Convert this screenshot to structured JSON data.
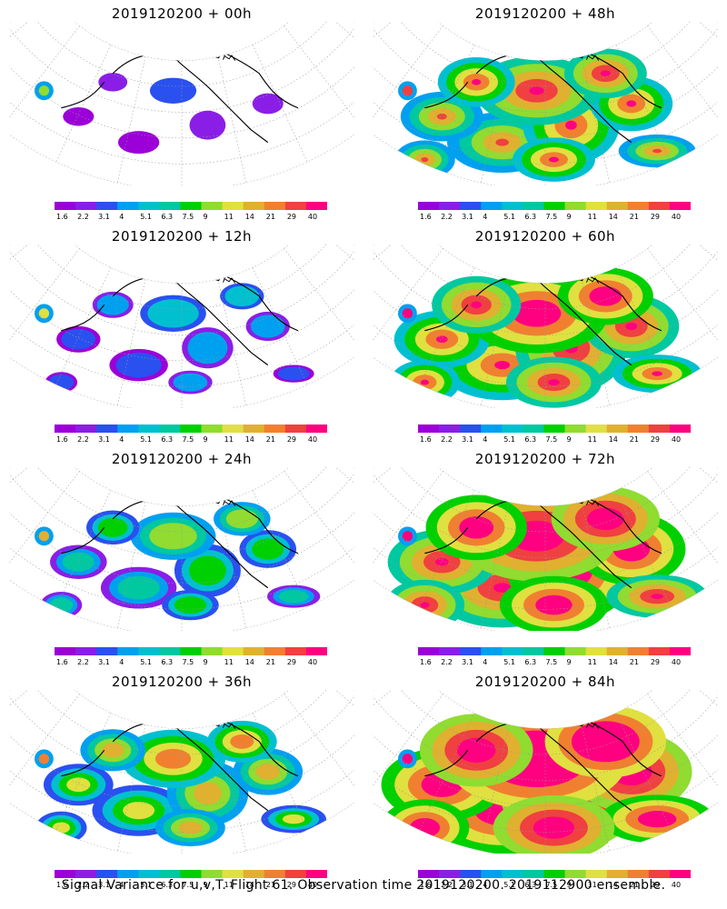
{
  "caption": "Signal Variance for u,v,T. Flight 61. Observation time 2019120200. 2019112900 ensemble.",
  "panels": [
    {
      "title": "2019120200 + 00h",
      "level": 0
    },
    {
      "title": "2019120200 + 48h",
      "level": 4
    },
    {
      "title": "2019120200 + 12h",
      "level": 1
    },
    {
      "title": "2019120200 + 60h",
      "level": 5
    },
    {
      "title": "2019120200 + 24h",
      "level": 2
    },
    {
      "title": "2019120200 + 72h",
      "level": 6
    },
    {
      "title": "2019120200 + 36h",
      "level": 3
    },
    {
      "title": "2019120200 + 84h",
      "level": 7
    }
  ],
  "colorbar": {
    "labels": [
      "1.6",
      "2.2",
      "3.1",
      "4",
      "5.1",
      "6.3",
      "7.5",
      "9",
      "11",
      "14",
      "21",
      "29",
      "40"
    ],
    "colors": [
      "#9b00d8",
      "#8a1ee6",
      "#2a50f0",
      "#00a0f0",
      "#00c0d0",
      "#00c8a0",
      "#00d000",
      "#90dc30",
      "#e0e040",
      "#e0b030",
      "#f08030",
      "#f04040",
      "#ff0080"
    ]
  }
}
